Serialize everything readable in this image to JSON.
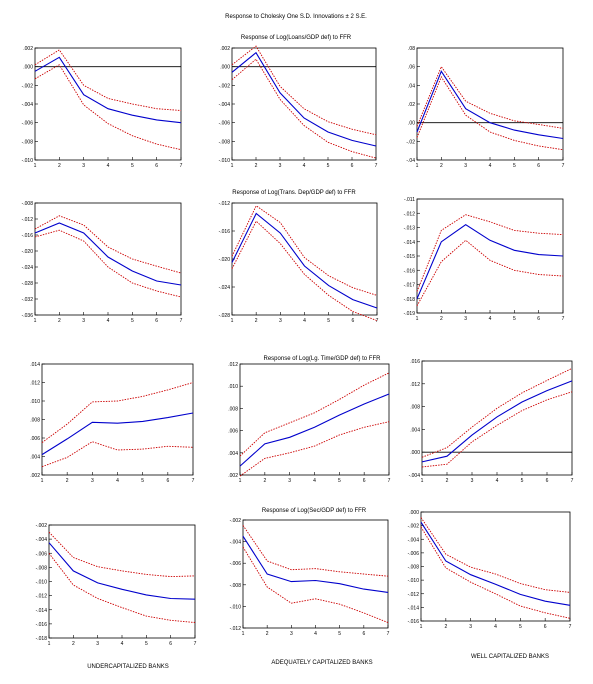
{
  "figure_title": "Response to Cholesky One S.D. Innovations ± 2 S.E.",
  "column_labels": [
    "UNDERCAPITALIZED BANKS",
    "ADEQUATELY CAPITALIZED BANKS",
    "WELL CAPITALIZED BANKS"
  ],
  "row_titles": [
    "Response of Log(Loans/GDP def) to FFR",
    "Response of Log(Trans. Dep/GDP def) to FFR",
    "Response of Log(Lg. Time/GDP def) to FFR",
    "Response of Log(Sec/GDP def) to FFR"
  ],
  "colors": {
    "response": "#0000cc",
    "band": "#cc0000",
    "axis": "#000000"
  },
  "chart_data": [
    {
      "type": "line",
      "x": [
        1,
        2,
        3,
        4,
        5,
        6,
        7
      ],
      "xlim": [
        1,
        7
      ],
      "ylim": [
        -0.01,
        0.002
      ],
      "yticks": [
        ".002",
        ".000",
        "-.002",
        "-.004",
        "-.006",
        "-.008",
        "-.010"
      ],
      "zero_line": true,
      "series": [
        {
          "role": "response",
          "values": [
            -0.0005,
            0.001,
            -0.003,
            -0.0045,
            -0.0052,
            -0.0057,
            -0.006
          ]
        },
        {
          "role": "upper",
          "values": [
            0.0002,
            0.0018,
            -0.002,
            -0.0034,
            -0.004,
            -0.0045,
            -0.0047
          ]
        },
        {
          "role": "lower",
          "values": [
            -0.0013,
            0.0002,
            -0.0041,
            -0.0061,
            -0.0074,
            -0.0083,
            -0.0089
          ]
        }
      ]
    },
    {
      "type": "line",
      "x": [
        1,
        2,
        3,
        4,
        5,
        6,
        7
      ],
      "xlim": [
        1,
        7
      ],
      "ylim": [
        -0.01,
        0.002
      ],
      "yticks": [
        ".002",
        ".000",
        "-.002",
        "-.004",
        "-.006",
        "-.008",
        "-.010"
      ],
      "zero_line": true,
      "series": [
        {
          "role": "response",
          "values": [
            -0.0006,
            0.0015,
            -0.0028,
            -0.0055,
            -0.007,
            -0.0079,
            -0.0085
          ]
        },
        {
          "role": "upper",
          "values": [
            0.0002,
            0.0022,
            -0.0021,
            -0.0045,
            -0.0059,
            -0.0067,
            -0.0073
          ]
        },
        {
          "role": "lower",
          "values": [
            -0.0014,
            0.0008,
            -0.0035,
            -0.0063,
            -0.0081,
            -0.0091,
            -0.0098
          ]
        }
      ]
    },
    {
      "type": "line",
      "x": [
        1,
        2,
        3,
        4,
        5,
        6,
        7
      ],
      "xlim": [
        1,
        7
      ],
      "ylim": [
        -0.04,
        0.08
      ],
      "yticks": [
        ".08",
        ".06",
        ".04",
        ".02",
        ".00",
        "-.02",
        "-.04"
      ],
      "zero_line": true,
      "series": [
        {
          "role": "response",
          "values": [
            -0.01,
            0.055,
            0.015,
            0.0,
            -0.008,
            -0.013,
            -0.017
          ]
        },
        {
          "role": "upper",
          "values": [
            -0.004,
            0.06,
            0.023,
            0.01,
            0.002,
            -0.002,
            -0.006
          ]
        },
        {
          "role": "lower",
          "values": [
            -0.016,
            0.049,
            0.008,
            -0.01,
            -0.019,
            -0.025,
            -0.029
          ]
        }
      ]
    },
    {
      "type": "line",
      "x": [
        1,
        2,
        3,
        4,
        5,
        6,
        7
      ],
      "xlim": [
        1,
        7
      ],
      "ylim": [
        -0.036,
        -0.008
      ],
      "yticks": [
        "-.008",
        "-.012",
        "-.016",
        "-.020",
        "-.024",
        "-.028",
        "-.032",
        "-.036"
      ],
      "zero_line": false,
      "series": [
        {
          "role": "response",
          "values": [
            -0.0155,
            -0.013,
            -0.0155,
            -0.0215,
            -0.025,
            -0.0275,
            -0.0285
          ]
        },
        {
          "role": "upper",
          "values": [
            -0.0145,
            -0.0112,
            -0.0135,
            -0.019,
            -0.022,
            -0.0238,
            -0.0255
          ]
        },
        {
          "role": "lower",
          "values": [
            -0.0165,
            -0.0148,
            -0.0175,
            -0.024,
            -0.028,
            -0.03,
            -0.0315
          ]
        }
      ]
    },
    {
      "type": "line",
      "x": [
        1,
        2,
        3,
        4,
        5,
        6,
        7
      ],
      "xlim": [
        1,
        7
      ],
      "ylim": [
        -0.028,
        -0.012
      ],
      "yticks": [
        "-.012",
        "-.016",
        "-.020",
        "-.024",
        "-.028"
      ],
      "zero_line": false,
      "series": [
        {
          "role": "response",
          "values": [
            -0.0205,
            -0.0135,
            -0.0163,
            -0.021,
            -0.0238,
            -0.0258,
            -0.027
          ]
        },
        {
          "role": "upper",
          "values": [
            -0.0196,
            -0.0124,
            -0.0148,
            -0.0198,
            -0.0224,
            -0.0241,
            -0.0252
          ]
        },
        {
          "role": "lower",
          "values": [
            -0.0214,
            -0.0146,
            -0.0178,
            -0.0222,
            -0.0252,
            -0.0275,
            -0.0288
          ]
        }
      ]
    },
    {
      "type": "line",
      "x": [
        1,
        2,
        3,
        4,
        5,
        6,
        7
      ],
      "xlim": [
        1,
        7
      ],
      "ylim": [
        -0.019,
        -0.011
      ],
      "yticks": [
        "-.011",
        "-.012",
        "-.013",
        "-.014",
        "-.015",
        "-.016",
        "-.017",
        "-.018",
        "-.019"
      ],
      "zero_line": false,
      "series": [
        {
          "role": "response",
          "values": [
            -0.018,
            -0.014,
            -0.0128,
            -0.0139,
            -0.0146,
            -0.0149,
            -0.015
          ]
        },
        {
          "role": "upper",
          "values": [
            -0.0175,
            -0.0132,
            -0.0121,
            -0.0126,
            -0.0132,
            -0.0134,
            -0.0135
          ]
        },
        {
          "role": "lower",
          "values": [
            -0.0185,
            -0.0154,
            -0.0139,
            -0.0153,
            -0.016,
            -0.0163,
            -0.0164
          ]
        }
      ]
    },
    {
      "type": "line",
      "x": [
        1,
        2,
        3,
        4,
        5,
        6,
        7
      ],
      "xlim": [
        1,
        7
      ],
      "ylim": [
        0.002,
        0.014
      ],
      "yticks": [
        ".014",
        ".012",
        ".010",
        ".008",
        ".006",
        ".004",
        ".002"
      ],
      "zero_line": false,
      "series": [
        {
          "role": "response",
          "values": [
            0.0042,
            0.0059,
            0.0077,
            0.0076,
            0.0078,
            0.0082,
            0.0087
          ]
        },
        {
          "role": "upper",
          "values": [
            0.0055,
            0.0075,
            0.0099,
            0.01,
            0.0105,
            0.0112,
            0.012
          ]
        },
        {
          "role": "lower",
          "values": [
            0.0029,
            0.0039,
            0.0056,
            0.0047,
            0.0048,
            0.0051,
            0.005
          ]
        }
      ]
    },
    {
      "type": "line",
      "x": [
        1,
        2,
        3,
        4,
        5,
        6,
        7
      ],
      "xlim": [
        1,
        7
      ],
      "ylim": [
        0.002,
        0.012
      ],
      "yticks": [
        ".012",
        ".010",
        ".008",
        ".006",
        ".004",
        ".002"
      ],
      "zero_line": false,
      "series": [
        {
          "role": "response",
          "values": [
            0.0028,
            0.0048,
            0.0054,
            0.0063,
            0.0074,
            0.0084,
            0.0093
          ]
        },
        {
          "role": "upper",
          "values": [
            0.0037,
            0.0058,
            0.0067,
            0.0076,
            0.0088,
            0.0101,
            0.0112
          ]
        },
        {
          "role": "lower",
          "values": [
            0.0019,
            0.0035,
            0.004,
            0.0046,
            0.0056,
            0.0063,
            0.0068
          ]
        }
      ]
    },
    {
      "type": "line",
      "x": [
        1,
        2,
        3,
        4,
        5,
        6,
        7
      ],
      "xlim": [
        1,
        7
      ],
      "ylim": [
        -0.004,
        0.016
      ],
      "yticks": [
        ".016",
        ".012",
        ".008",
        ".004",
        ".000",
        "-.004"
      ],
      "zero_line": true,
      "series": [
        {
          "role": "response",
          "values": [
            -0.0017,
            -0.0007,
            0.003,
            0.0062,
            0.0088,
            0.0108,
            0.0125
          ]
        },
        {
          "role": "upper",
          "values": [
            -0.0009,
            0.0008,
            0.0044,
            0.0077,
            0.0104,
            0.0126,
            0.0147
          ]
        },
        {
          "role": "lower",
          "values": [
            -0.0026,
            -0.0021,
            0.0018,
            0.0047,
            0.0073,
            0.0092,
            0.0106
          ]
        }
      ]
    },
    {
      "type": "line",
      "x": [
        1,
        2,
        3,
        4,
        5,
        6,
        7
      ],
      "xlim": [
        1,
        7
      ],
      "ylim": [
        -0.018,
        -0.002
      ],
      "yticks": [
        "-.002",
        "-.004",
        "-.006",
        "-.008",
        "-.010",
        "-.012",
        "-.014",
        "-.016",
        "-.018"
      ],
      "zero_line": false,
      "series": [
        {
          "role": "response",
          "values": [
            -0.0045,
            -0.0085,
            -0.0102,
            -0.0111,
            -0.0119,
            -0.0124,
            -0.0125
          ]
        },
        {
          "role": "upper",
          "values": [
            -0.003,
            -0.0066,
            -0.0079,
            -0.0085,
            -0.009,
            -0.0093,
            -0.0092
          ]
        },
        {
          "role": "lower",
          "values": [
            -0.006,
            -0.0105,
            -0.0124,
            -0.0137,
            -0.0149,
            -0.0155,
            -0.0158
          ]
        }
      ]
    },
    {
      "type": "line",
      "x": [
        1,
        2,
        3,
        4,
        5,
        6,
        7
      ],
      "xlim": [
        1,
        7
      ],
      "ylim": [
        -0.012,
        -0.002
      ],
      "yticks": [
        "-.002",
        "-.004",
        "-.006",
        "-.008",
        "-.010",
        "-.012"
      ],
      "zero_line": false,
      "series": [
        {
          "role": "response",
          "values": [
            -0.0035,
            -0.007,
            -0.0077,
            -0.0076,
            -0.0079,
            -0.0084,
            -0.0087
          ]
        },
        {
          "role": "upper",
          "values": [
            -0.0025,
            -0.0058,
            -0.0066,
            -0.0065,
            -0.0068,
            -0.007,
            -0.0072
          ]
        },
        {
          "role": "lower",
          "values": [
            -0.0045,
            -0.0082,
            -0.0097,
            -0.0093,
            -0.0098,
            -0.0106,
            -0.0115
          ]
        }
      ]
    },
    {
      "type": "line",
      "x": [
        1,
        2,
        3,
        4,
        5,
        6,
        7
      ],
      "xlim": [
        1,
        7
      ],
      "ylim": [
        -0.016,
        0.0
      ],
      "yticks": [
        ".000",
        "-.002",
        "-.004",
        "-.006",
        "-.008",
        "-.010",
        "-.012",
        "-.014",
        "-.016"
      ],
      "zero_line": false,
      "series": [
        {
          "role": "response",
          "values": [
            -0.0015,
            -0.0072,
            -0.0092,
            -0.0106,
            -0.0121,
            -0.0131,
            -0.0137
          ]
        },
        {
          "role": "upper",
          "values": [
            -0.0008,
            -0.0062,
            -0.0081,
            -0.0091,
            -0.0105,
            -0.0114,
            -0.0118
          ]
        },
        {
          "role": "lower",
          "values": [
            -0.0022,
            -0.0082,
            -0.0103,
            -0.012,
            -0.0138,
            -0.0148,
            -0.0156
          ]
        }
      ]
    }
  ]
}
